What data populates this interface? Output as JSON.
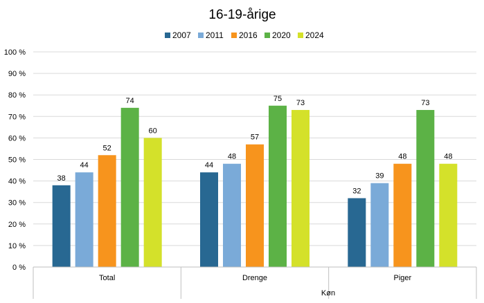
{
  "chart_data": {
    "type": "bar",
    "title": "16-19-årige",
    "xlabel": "Køn",
    "ylabel": "",
    "categories": [
      "Total",
      "Drenge",
      "Piger"
    ],
    "series": [
      {
        "name": "2007",
        "color": "#286892",
        "values": [
          38,
          44,
          32
        ]
      },
      {
        "name": "2011",
        "color": "#7aaad8",
        "values": [
          44,
          48,
          39
        ]
      },
      {
        "name": "2016",
        "color": "#f7941d",
        "values": [
          52,
          57,
          48
        ]
      },
      {
        "name": "2020",
        "color": "#5cb246",
        "values": [
          74,
          75,
          73
        ]
      },
      {
        "name": "2024",
        "color": "#d4e12a",
        "values": [
          60,
          73,
          48
        ]
      }
    ],
    "ylim": [
      0,
      100
    ],
    "yticks": [
      "0 %",
      "10 %",
      "20 %",
      "30 %",
      "40 %",
      "50 %",
      "60 %",
      "70 %",
      "80 %",
      "90 %",
      "100 %"
    ],
    "grid": true,
    "legend_position": "top"
  }
}
